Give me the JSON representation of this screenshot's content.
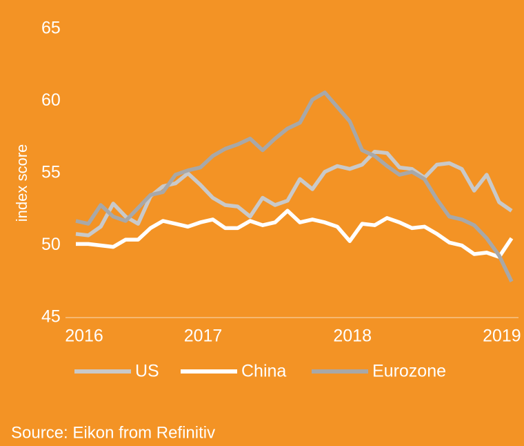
{
  "chart_data": {
    "type": "line",
    "y_label": "index score",
    "source": "Source: Eikon from Refinitiv",
    "categories": [
      "2016",
      null,
      null,
      null,
      null,
      null,
      null,
      null,
      null,
      "2017",
      null,
      null,
      null,
      null,
      null,
      null,
      null,
      null,
      null,
      null,
      null,
      "2018",
      null,
      null,
      null,
      null,
      null,
      null,
      null,
      null,
      null,
      null,
      null,
      "2019",
      null,
      null
    ],
    "series": [
      {
        "name": "US",
        "color": "#c9c9c9",
        "values": [
          50.8,
          50.7,
          51.3,
          52.9,
          52.0,
          51.5,
          53.4,
          54.1,
          54.3,
          55.0,
          54.2,
          53.3,
          52.8,
          52.7,
          52.0,
          53.3,
          52.8,
          53.1,
          54.6,
          53.9,
          55.1,
          55.5,
          55.3,
          55.6,
          56.5,
          56.4,
          55.4,
          55.3,
          54.7,
          55.6,
          55.7,
          55.3,
          53.8,
          54.9,
          53.0,
          52.4
        ]
      },
      {
        "name": "China",
        "color": "#ffffff",
        "values": [
          50.1,
          50.1,
          50.0,
          49.9,
          50.4,
          50.4,
          51.2,
          51.7,
          51.5,
          51.3,
          51.6,
          51.8,
          51.2,
          51.2,
          51.7,
          51.4,
          51.6,
          52.4,
          51.6,
          51.8,
          51.6,
          51.3,
          50.3,
          51.5,
          51.4,
          51.9,
          51.6,
          51.2,
          51.3,
          50.8,
          50.2,
          50.0,
          49.4,
          49.5,
          49.2,
          50.5
        ]
      },
      {
        "name": "Eurozone",
        "color": "#a8a8a8",
        "values": [
          51.7,
          51.5,
          52.8,
          52.0,
          51.7,
          52.6,
          53.5,
          53.7,
          54.9,
          55.2,
          55.4,
          56.2,
          56.7,
          57.0,
          57.4,
          56.6,
          57.4,
          58.1,
          58.5,
          60.1,
          60.6,
          59.6,
          58.6,
          56.6,
          56.2,
          55.5,
          54.9,
          55.1,
          54.6,
          53.2,
          52.0,
          51.8,
          51.4,
          50.5,
          49.3,
          47.5
        ]
      }
    ],
    "ylim": [
      45,
      65
    ],
    "yticks": [
      45,
      50,
      55,
      60,
      65
    ],
    "background": "#f39325"
  }
}
